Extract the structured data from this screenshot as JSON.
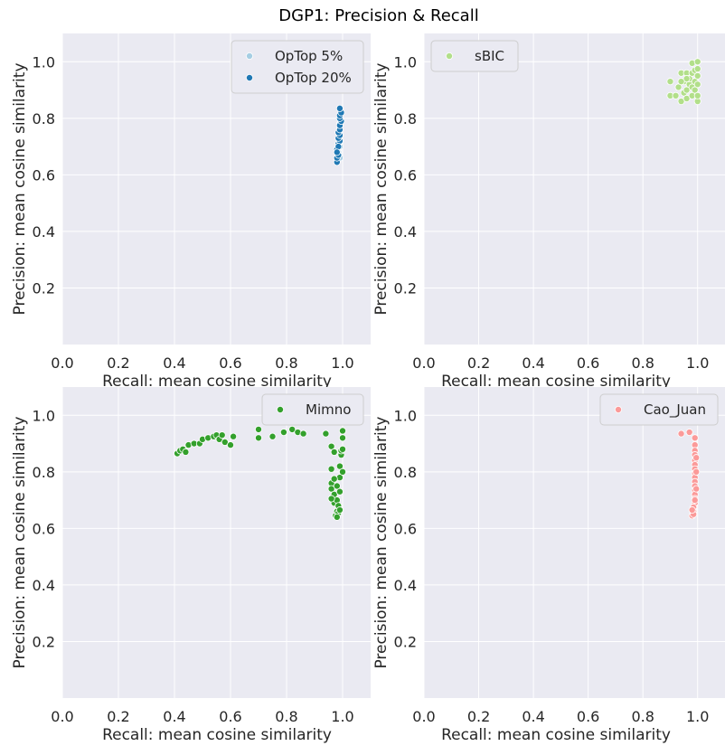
{
  "title": "DGP1: Precision & Recall",
  "chart_data": [
    {
      "type": "scatter",
      "title": "",
      "xlabel": "Recall: mean cosine similarity",
      "ylabel": "Precision: mean cosine similarity",
      "xlim": [
        0,
        1.1
      ],
      "ylim": [
        0,
        1.1
      ],
      "xticks": [
        "0.0",
        "0.2",
        "0.4",
        "0.6",
        "0.8",
        "1.0"
      ],
      "yticks": [
        "0.2",
        "0.4",
        "0.6",
        "0.8",
        "1.0"
      ],
      "grid": true,
      "legend": "top-right",
      "series": [
        {
          "name": "OpTop 5%",
          "color": "#a6cee3",
          "points": [
            [
              0.99,
              0.66
            ],
            [
              0.99,
              0.7
            ],
            [
              0.99,
              0.74
            ],
            [
              0.99,
              0.78
            ],
            [
              0.985,
              0.68
            ],
            [
              0.99,
              0.72
            ]
          ]
        },
        {
          "name": "OpTop 20%",
          "color": "#1f78b4",
          "points": [
            [
              0.98,
              0.645
            ],
            [
              0.98,
              0.66
            ],
            [
              0.985,
              0.67
            ],
            [
              0.98,
              0.69
            ],
            [
              0.985,
              0.71
            ],
            [
              0.99,
              0.72
            ],
            [
              0.985,
              0.73
            ],
            [
              0.99,
              0.74
            ],
            [
              0.985,
              0.75
            ],
            [
              0.99,
              0.76
            ],
            [
              0.99,
              0.775
            ],
            [
              0.995,
              0.79
            ],
            [
              0.99,
              0.8
            ],
            [
              0.99,
              0.81
            ],
            [
              0.995,
              0.82
            ],
            [
              0.99,
              0.835
            ],
            [
              0.985,
              0.7
            ],
            [
              0.98,
              0.68
            ]
          ]
        }
      ]
    },
    {
      "type": "scatter",
      "title": "",
      "xlabel": "Recall: mean cosine similarity",
      "ylabel": "Precision: mean cosine similarity",
      "xlim": [
        0,
        1.1
      ],
      "ylim": [
        0,
        1.1
      ],
      "xticks": [
        "0.0",
        "0.2",
        "0.4",
        "0.6",
        "0.8",
        "1.0"
      ],
      "yticks": [
        "0.2",
        "0.4",
        "0.6",
        "0.8",
        "1.0"
      ],
      "grid": true,
      "legend": "top-left",
      "series": [
        {
          "name": "sBIC",
          "color": "#b2df8a",
          "points": [
            [
              0.9,
              0.93
            ],
            [
              0.9,
              0.88
            ],
            [
              0.92,
              0.88
            ],
            [
              0.93,
              0.91
            ],
            [
              0.94,
              0.86
            ],
            [
              0.94,
              0.96
            ],
            [
              0.95,
              0.89
            ],
            [
              0.95,
              0.93
            ],
            [
              0.96,
              0.87
            ],
            [
              0.96,
              0.9
            ],
            [
              0.96,
              0.96
            ],
            [
              0.97,
              0.92
            ],
            [
              0.97,
              0.94
            ],
            [
              0.98,
              0.88
            ],
            [
              0.98,
              0.91
            ],
            [
              0.98,
              0.96
            ],
            [
              0.98,
              0.995
            ],
            [
              0.99,
              0.9
            ],
            [
              0.99,
              0.93
            ],
            [
              0.99,
              0.97
            ],
            [
              1.0,
              0.86
            ],
            [
              1.0,
              0.88
            ],
            [
              1.0,
              0.92
            ],
            [
              1.0,
              0.95
            ],
            [
              1.0,
              0.975
            ],
            [
              1.0,
              1.0
            ],
            [
              0.96,
              0.94
            ],
            [
              0.94,
              0.93
            ]
          ]
        }
      ]
    },
    {
      "type": "scatter",
      "title": "",
      "xlabel": "Recall: mean cosine similarity",
      "ylabel": "Precision: mean cosine similarity",
      "xlim": [
        0,
        1.1
      ],
      "ylim": [
        0,
        1.1
      ],
      "xticks": [
        "0.0",
        "0.2",
        "0.4",
        "0.6",
        "0.8",
        "1.0"
      ],
      "yticks": [
        "0.2",
        "0.4",
        "0.6",
        "0.8",
        "1.0"
      ],
      "grid": true,
      "legend": "top-right",
      "series": [
        {
          "name": "Mimno",
          "color": "#33a02c",
          "points": [
            [
              0.41,
              0.865
            ],
            [
              0.42,
              0.875
            ],
            [
              0.43,
              0.88
            ],
            [
              0.44,
              0.87
            ],
            [
              0.45,
              0.895
            ],
            [
              0.47,
              0.9
            ],
            [
              0.49,
              0.9
            ],
            [
              0.5,
              0.915
            ],
            [
              0.52,
              0.92
            ],
            [
              0.54,
              0.925
            ],
            [
              0.55,
              0.93
            ],
            [
              0.56,
              0.915
            ],
            [
              0.57,
              0.93
            ],
            [
              0.58,
              0.905
            ],
            [
              0.6,
              0.895
            ],
            [
              0.61,
              0.925
            ],
            [
              0.7,
              0.95
            ],
            [
              0.7,
              0.92
            ],
            [
              0.75,
              0.925
            ],
            [
              0.79,
              0.94
            ],
            [
              0.82,
              0.95
            ],
            [
              0.84,
              0.94
            ],
            [
              0.86,
              0.935
            ],
            [
              0.94,
              0.935
            ],
            [
              0.96,
              0.89
            ],
            [
              0.96,
              0.81
            ],
            [
              0.96,
              0.76
            ],
            [
              0.96,
              0.74
            ],
            [
              0.97,
              0.87
            ],
            [
              0.97,
              0.72
            ],
            [
              0.97,
              0.69
            ],
            [
              0.975,
              0.645
            ],
            [
              0.98,
              0.66
            ],
            [
              0.98,
              0.7
            ],
            [
              0.98,
              0.75
            ],
            [
              0.985,
              0.655
            ],
            [
              0.985,
              0.68
            ],
            [
              0.99,
              0.73
            ],
            [
              0.99,
              0.78
            ],
            [
              0.99,
              0.82
            ],
            [
              0.995,
              0.86
            ],
            [
              0.995,
              0.875
            ],
            [
              1.0,
              0.945
            ],
            [
              1.0,
              0.92
            ],
            [
              1.0,
              0.88
            ],
            [
              1.0,
              0.8
            ],
            [
              0.98,
              0.64
            ],
            [
              0.99,
              0.665
            ],
            [
              0.97,
              0.775
            ],
            [
              0.96,
              0.705
            ]
          ]
        }
      ]
    },
    {
      "type": "scatter",
      "title": "",
      "xlabel": "Recall: mean cosine similarity",
      "ylabel": "Precision: mean cosine similarity",
      "xlim": [
        0,
        1.1
      ],
      "ylim": [
        0,
        1.1
      ],
      "xticks": [
        "0.0",
        "0.2",
        "0.4",
        "0.6",
        "0.8",
        "1.0"
      ],
      "yticks": [
        "0.2",
        "0.4",
        "0.6",
        "0.8",
        "1.0"
      ],
      "grid": true,
      "legend": "top-right",
      "series": [
        {
          "name": "Cao_Juan",
          "color": "#fb9a99",
          "points": [
            [
              0.94,
              0.935
            ],
            [
              0.97,
              0.94
            ],
            [
              0.99,
              0.92
            ],
            [
              0.99,
              0.895
            ],
            [
              0.99,
              0.875
            ],
            [
              0.99,
              0.86
            ],
            [
              0.99,
              0.84
            ],
            [
              0.99,
              0.825
            ],
            [
              0.99,
              0.81
            ],
            [
              0.99,
              0.795
            ],
            [
              0.99,
              0.78
            ],
            [
              0.99,
              0.765
            ],
            [
              0.99,
              0.75
            ],
            [
              0.99,
              0.735
            ],
            [
              0.99,
              0.72
            ],
            [
              0.99,
              0.705
            ],
            [
              0.99,
              0.69
            ],
            [
              0.985,
              0.675
            ],
            [
              0.985,
              0.66
            ],
            [
              0.98,
              0.645
            ],
            [
              0.985,
              0.65
            ],
            [
              0.995,
              0.85
            ],
            [
              0.995,
              0.8
            ],
            [
              0.995,
              0.74
            ],
            [
              0.99,
              0.7
            ],
            [
              0.98,
              0.665
            ]
          ]
        }
      ]
    }
  ]
}
